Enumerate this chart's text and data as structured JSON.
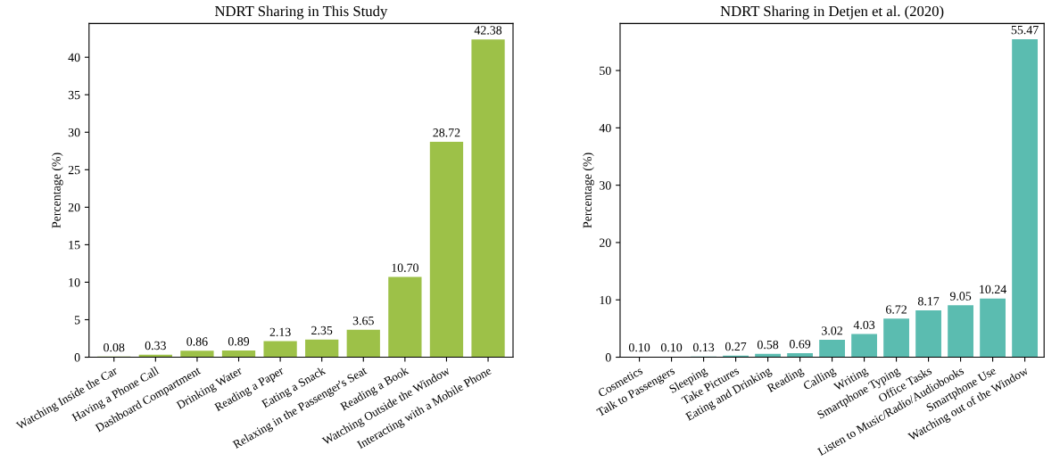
{
  "chart_data": [
    {
      "type": "bar",
      "title": "NDRT Sharing in This Study",
      "ylabel": "Percentage (%)",
      "categories": [
        "Watching Inside the Car",
        "Having a Phone Call",
        "Dashboard Compartment",
        "Drinking Water",
        "Reading a Paper",
        "Eating a Snack",
        "Relaxing in the Passenger's Seat",
        "Reading a Book",
        "Watching Outside the Window",
        "Interacting with a Mobile Phone"
      ],
      "values": [
        0.08,
        0.33,
        0.86,
        0.89,
        2.13,
        2.35,
        3.65,
        10.7,
        28.72,
        42.38
      ],
      "value_labels": [
        "0.08",
        "0.33",
        "0.86",
        "0.89",
        "2.13",
        "2.35",
        "3.65",
        "10.70",
        "28.72",
        "42.38"
      ],
      "color": "#9dc148",
      "ylim": [
        0,
        44.5
      ],
      "yticks": [
        0,
        5,
        10,
        15,
        20,
        25,
        30,
        35,
        40
      ],
      "grid": false
    },
    {
      "type": "bar",
      "title": "NDRT Sharing in Detjen et al. (2020)",
      "ylabel": "Percentage (%)",
      "categories": [
        "Cosmetics",
        "Talk to Passengers",
        "Sleeping",
        "Take Pictures",
        "Eating and Drinking",
        "Reading",
        "Calling",
        "Writing",
        "Smartphone Typing",
        "Office Tasks",
        "Listen to Music/Radio/Audiobooks",
        "Smartphone Use",
        "Watching out of the Window"
      ],
      "values": [
        0.1,
        0.1,
        0.13,
        0.27,
        0.58,
        0.69,
        3.02,
        4.03,
        6.72,
        8.17,
        9.05,
        10.24,
        55.47
      ],
      "value_labels": [
        "0.10",
        "0.10",
        "0.13",
        "0.27",
        "0.58",
        "0.69",
        "3.02",
        "4.03",
        "6.72",
        "8.17",
        "9.05",
        "10.24",
        "55.47"
      ],
      "color": "#5bbcb0",
      "ylim": [
        0,
        58.2
      ],
      "yticks": [
        0,
        10,
        20,
        30,
        40,
        50
      ],
      "grid": false
    }
  ]
}
